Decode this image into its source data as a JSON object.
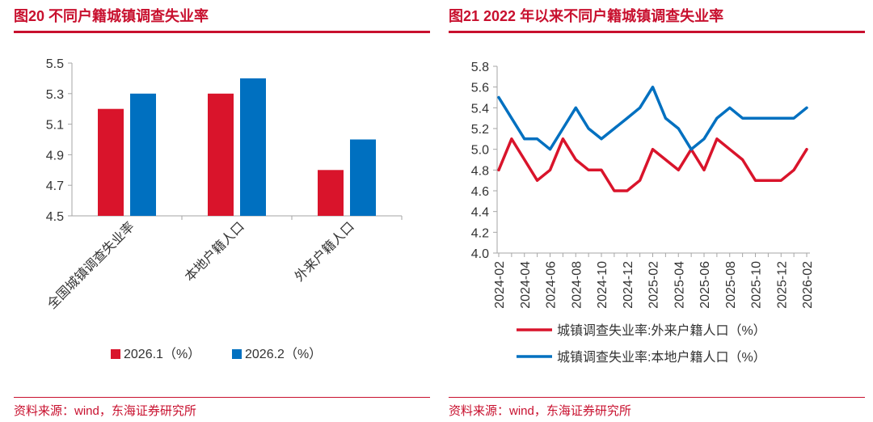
{
  "colors": {
    "accent": "#c8102e",
    "series_red": "#d9142b",
    "series_blue": "#0070c0",
    "axis": "#a6a6a6",
    "text": "#333333"
  },
  "left": {
    "title": "图20  不同户籍城镇调查失业率",
    "source": "资料来源：wind，东海证券研究所"
  },
  "right": {
    "title": "图21  2022 年以来不同户籍城镇调查失业率",
    "source": "资料来源：wind，东海证券研究所"
  },
  "chart_data": [
    {
      "type": "bar",
      "title": "不同户籍城镇调查失业率",
      "categories": [
        "全国城镇调查失业率",
        "本地户籍人口",
        "外来户籍人口"
      ],
      "series": [
        {
          "name": "2026.1（%）",
          "values": [
            5.2,
            5.3,
            4.8
          ]
        },
        {
          "name": "2026.2（%）",
          "values": [
            5.3,
            5.4,
            5.0
          ]
        }
      ],
      "ylim": [
        4.5,
        5.5
      ],
      "yticks": [
        "4.5",
        "4.7",
        "4.9",
        "5.1",
        "5.3",
        "5.5"
      ],
      "legend_position": "bottom",
      "grid": false
    },
    {
      "type": "line",
      "title": "2022 年以来不同户籍城镇调查失业率",
      "x": [
        "2024-02",
        "2024-03",
        "2024-04",
        "2024-05",
        "2024-06",
        "2024-07",
        "2024-08",
        "2024-09",
        "2024-10",
        "2024-11",
        "2024-12",
        "2025-01",
        "2025-02",
        "2025-03",
        "2025-04",
        "2025-05",
        "2025-06",
        "2025-07",
        "2025-08",
        "2025-09",
        "2025-10",
        "2025-11",
        "2025-12",
        "2026-01",
        "2026-02"
      ],
      "xticks": [
        "2024-02",
        "2024-04",
        "2024-06",
        "2024-08",
        "2024-10",
        "2024-12",
        "2025-02",
        "2025-04",
        "2025-06",
        "2025-08",
        "2025-10",
        "2025-12",
        "2026-02"
      ],
      "series": [
        {
          "name": "城镇调查失业率:外来户籍人口（%）",
          "values": [
            4.8,
            5.1,
            4.9,
            4.7,
            4.8,
            5.1,
            4.9,
            4.8,
            4.8,
            4.6,
            4.6,
            4.7,
            5.0,
            4.9,
            4.8,
            5.0,
            4.8,
            5.1,
            5.0,
            4.9,
            4.7,
            4.7,
            4.7,
            4.8,
            5.0
          ]
        },
        {
          "name": "城镇调查失业率:本地户籍人口（%）",
          "values": [
            5.5,
            5.3,
            5.1,
            5.1,
            5.0,
            5.2,
            5.4,
            5.2,
            5.1,
            5.2,
            5.3,
            5.4,
            5.6,
            5.3,
            5.2,
            5.0,
            5.1,
            5.3,
            5.4,
            5.3,
            5.3,
            5.3,
            5.3,
            5.3,
            5.4
          ]
        }
      ],
      "ylim": [
        4.0,
        5.8
      ],
      "yticks": [
        "4.0",
        "4.2",
        "4.4",
        "4.6",
        "4.8",
        "5.0",
        "5.2",
        "5.4",
        "5.6",
        "5.8"
      ],
      "legend_position": "bottom",
      "grid": false
    }
  ]
}
